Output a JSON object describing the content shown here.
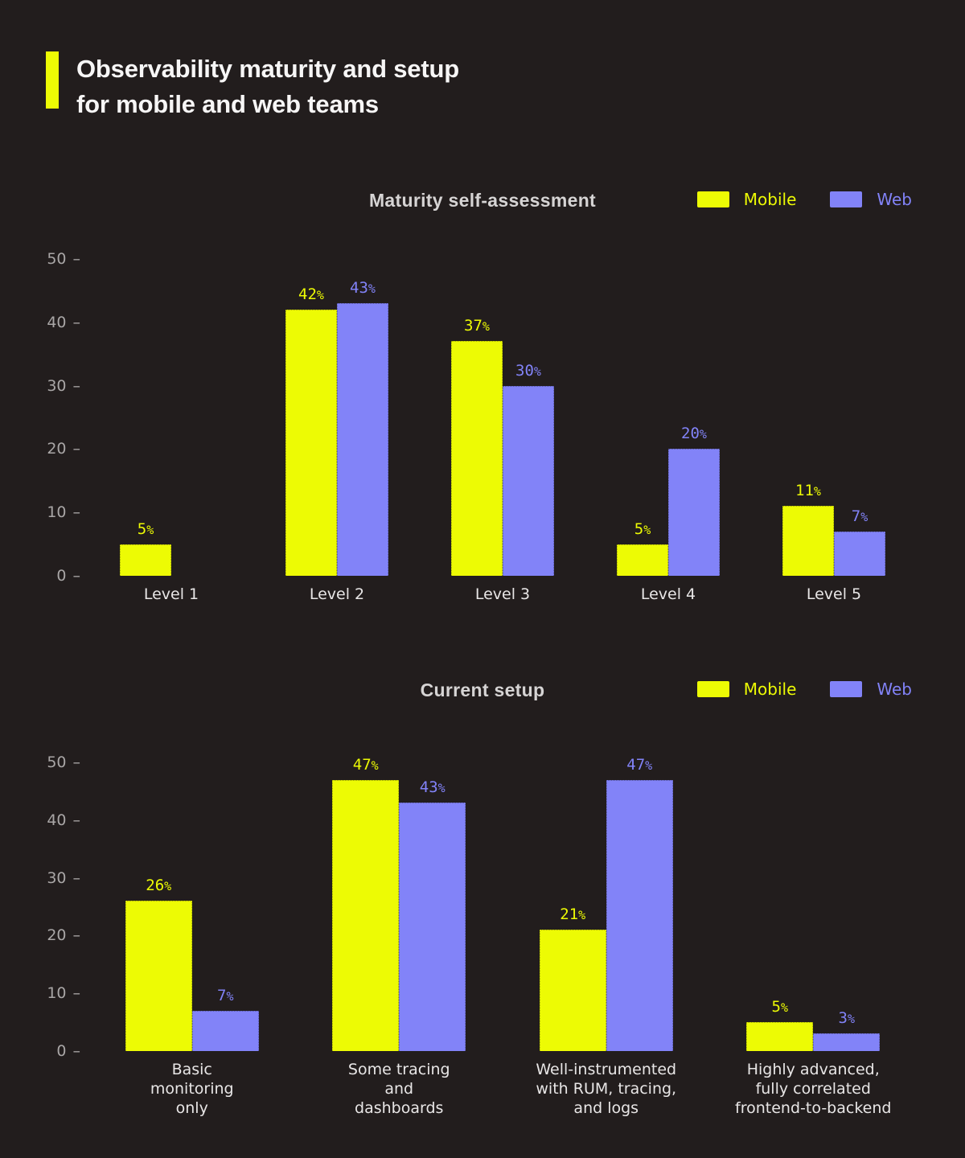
{
  "page": {
    "background": "#221D1D",
    "title_line1": "Observability maturity and setup",
    "title_line2": "for mobile and web teams"
  },
  "colors": {
    "accent": "#EDFB04",
    "mobile": "#EDFB04",
    "web": "#8283F8",
    "title_text": "#F7F6F6",
    "chart_title_text": "#D6D4D4",
    "axis_text": "#A9A6A6",
    "category_text": "#E8E6E6"
  },
  "legend": {
    "items": [
      {
        "label": "Mobile",
        "color": "#EDFB04"
      },
      {
        "label": "Web",
        "color": "#8283F8"
      }
    ]
  },
  "chart_data": [
    {
      "type": "bar",
      "title": "Maturity self-assessment",
      "categories": [
        "Level 1",
        "Level 2",
        "Level 3",
        "Level 4",
        "Level 5"
      ],
      "series": [
        {
          "name": "Mobile",
          "color": "#EDFB04",
          "values": [
            5,
            42,
            37,
            5,
            11
          ]
        },
        {
          "name": "Web",
          "color": "#8283F8",
          "values": [
            0,
            43,
            30,
            20,
            7
          ]
        }
      ],
      "value_suffix": "%",
      "ylim": [
        0,
        50
      ],
      "yticks": [
        0,
        10,
        20,
        30,
        40,
        50
      ],
      "grid": false,
      "legend_position": "top-right",
      "data_labels": true
    },
    {
      "type": "bar",
      "title": "Current setup",
      "categories": [
        "Basic\nmonitoring\nonly",
        "Some tracing\nand\ndashboards",
        "Well-instrumented\nwith RUM, tracing,\nand logs",
        "Highly advanced,\nfully correlated\nfrontend-to-backend"
      ],
      "series": [
        {
          "name": "Mobile",
          "color": "#EDFB04",
          "values": [
            26,
            47,
            21,
            5
          ]
        },
        {
          "name": "Web",
          "color": "#8283F8",
          "values": [
            7,
            43,
            47,
            3
          ]
        }
      ],
      "value_suffix": "%",
      "ylim": [
        0,
        50
      ],
      "yticks": [
        0,
        10,
        20,
        30,
        40,
        50
      ],
      "grid": false,
      "legend_position": "top-right",
      "data_labels": true
    }
  ]
}
